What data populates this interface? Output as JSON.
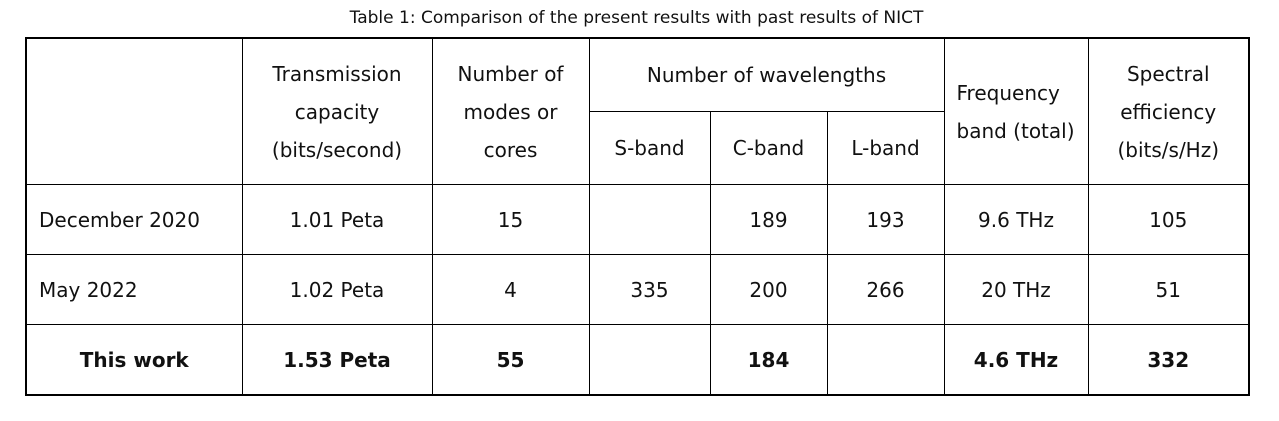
{
  "caption": "Table 1: Comparison of the present results with past results of NICT",
  "table": {
    "header": {
      "capacity": "Transmission capacity (bits/second)",
      "modes": "Number of modes or cores",
      "wavelengths": "Number of wavelengths",
      "bands": [
        "S-band",
        "C-band",
        "L-band"
      ],
      "frequency": "Frequency band (total)",
      "efficiency": "Spectral efficiency (bits/s/Hz)"
    },
    "rows": [
      [
        "December 2020",
        "1.01 Peta",
        15,
        null,
        189,
        193,
        "9.6 THz",
        105
      ],
      [
        "May 2022",
        "1.02 Peta",
        4,
        335,
        200,
        266,
        "20 THz",
        51
      ],
      [
        "This work",
        "1.53 Peta",
        55,
        null,
        184,
        null,
        "4.6 THz",
        332
      ]
    ]
  }
}
